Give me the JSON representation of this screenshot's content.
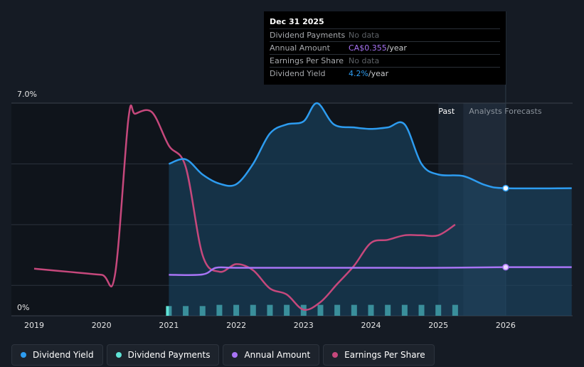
{
  "tooltip": {
    "date": "Dec 31 2025",
    "rows": [
      {
        "label": "Dividend Payments",
        "value": "No data",
        "unit": ""
      },
      {
        "label": "Annual Amount",
        "value": "CA$0.355",
        "unit": "/year"
      },
      {
        "label": "Earnings Per Share",
        "value": "No data",
        "unit": ""
      },
      {
        "label": "Dividend Yield",
        "value": "4.2%",
        "unit": "/year"
      }
    ]
  },
  "regions": {
    "past": "Past",
    "forecast": "Analysts Forecasts"
  },
  "legend": [
    {
      "label": "Dividend Yield",
      "color": "#2d9cf0"
    },
    {
      "label": "Dividend Payments",
      "color": "#5fe3d6"
    },
    {
      "label": "Annual Amount",
      "color": "#a874f5"
    },
    {
      "label": "Earnings Per Share",
      "color": "#c6487c"
    }
  ],
  "colors": {
    "background": "#151b24",
    "past_region": "#0f141b",
    "forecast_region": "#1f2a38",
    "yield": "#2d9cf0",
    "payments": "#5fe3d6",
    "annual": "#a874f5",
    "eps": "#c6487c",
    "grid": "#2b323c"
  },
  "chart_data": {
    "type": "line",
    "title": "",
    "xlabel": "",
    "ylabel": "",
    "xlim": [
      2018.85,
      2026.98
    ],
    "ylim": [
      0,
      7.0
    ],
    "y_ticks": [
      {
        "value": 7.0,
        "label": "7.0%"
      },
      {
        "value": 0,
        "label": "0%"
      }
    ],
    "x_ticks": [
      2019,
      2020,
      2021,
      2022,
      2023,
      2024,
      2025,
      2026
    ],
    "past_end": 2025.0,
    "forecast_start": 2025.37,
    "highlight_x": 2026.0,
    "series": [
      {
        "name": "Dividend Yield",
        "unit": "%",
        "x": [
          2021.0,
          2021.25,
          2021.5,
          2021.75,
          2022.0,
          2022.25,
          2022.5,
          2022.75,
          2023.0,
          2023.2,
          2023.45,
          2023.75,
          2024.0,
          2024.25,
          2024.5,
          2024.75,
          2025.0,
          2025.37,
          2025.7,
          2026.0,
          2026.98
        ],
        "values": [
          5.0,
          5.15,
          4.65,
          4.35,
          4.33,
          5.0,
          6.0,
          6.3,
          6.4,
          7.0,
          6.3,
          6.2,
          6.15,
          6.2,
          6.3,
          5.0,
          4.65,
          4.6,
          4.3,
          4.2,
          4.2
        ]
      },
      {
        "name": "Annual Amount",
        "unit": "%",
        "x": [
          2021.0,
          2021.5,
          2021.7,
          2022.0,
          2023.0,
          2024.0,
          2025.0,
          2026.0,
          2026.98
        ],
        "values": [
          1.35,
          1.36,
          1.58,
          1.58,
          1.58,
          1.58,
          1.58,
          1.6,
          1.6
        ]
      },
      {
        "name": "Earnings Per Share",
        "unit": "%",
        "x": [
          2019.0,
          2019.5,
          2020.0,
          2020.2,
          2020.4,
          2020.5,
          2020.75,
          2021.0,
          2021.25,
          2021.5,
          2021.75,
          2022.0,
          2022.25,
          2022.5,
          2022.75,
          2023.0,
          2023.25,
          2023.5,
          2023.75,
          2024.0,
          2024.25,
          2024.5,
          2024.75,
          2025.0,
          2025.25
        ],
        "values": [
          1.55,
          1.45,
          1.35,
          1.35,
          6.5,
          6.65,
          6.7,
          5.6,
          4.9,
          2.0,
          1.45,
          1.7,
          1.5,
          0.9,
          0.7,
          0.2,
          0.45,
          1.05,
          1.65,
          2.4,
          2.5,
          2.65,
          2.65,
          2.65,
          3.0
        ]
      }
    ],
    "payments": {
      "name": "Dividend Payments",
      "x": [
        2021.0,
        2021.25,
        2021.5,
        2021.75,
        2022.0,
        2022.25,
        2022.5,
        2022.75,
        2023.0,
        2023.25,
        2023.5,
        2023.75,
        2024.0,
        2024.25,
        2024.5,
        2024.75,
        2025.0,
        2025.25
      ],
      "values": [
        0.32,
        0.32,
        0.32,
        0.36,
        0.36,
        0.36,
        0.36,
        0.36,
        0.36,
        0.36,
        0.36,
        0.36,
        0.36,
        0.36,
        0.36,
        0.36,
        0.36,
        0.36
      ]
    }
  }
}
